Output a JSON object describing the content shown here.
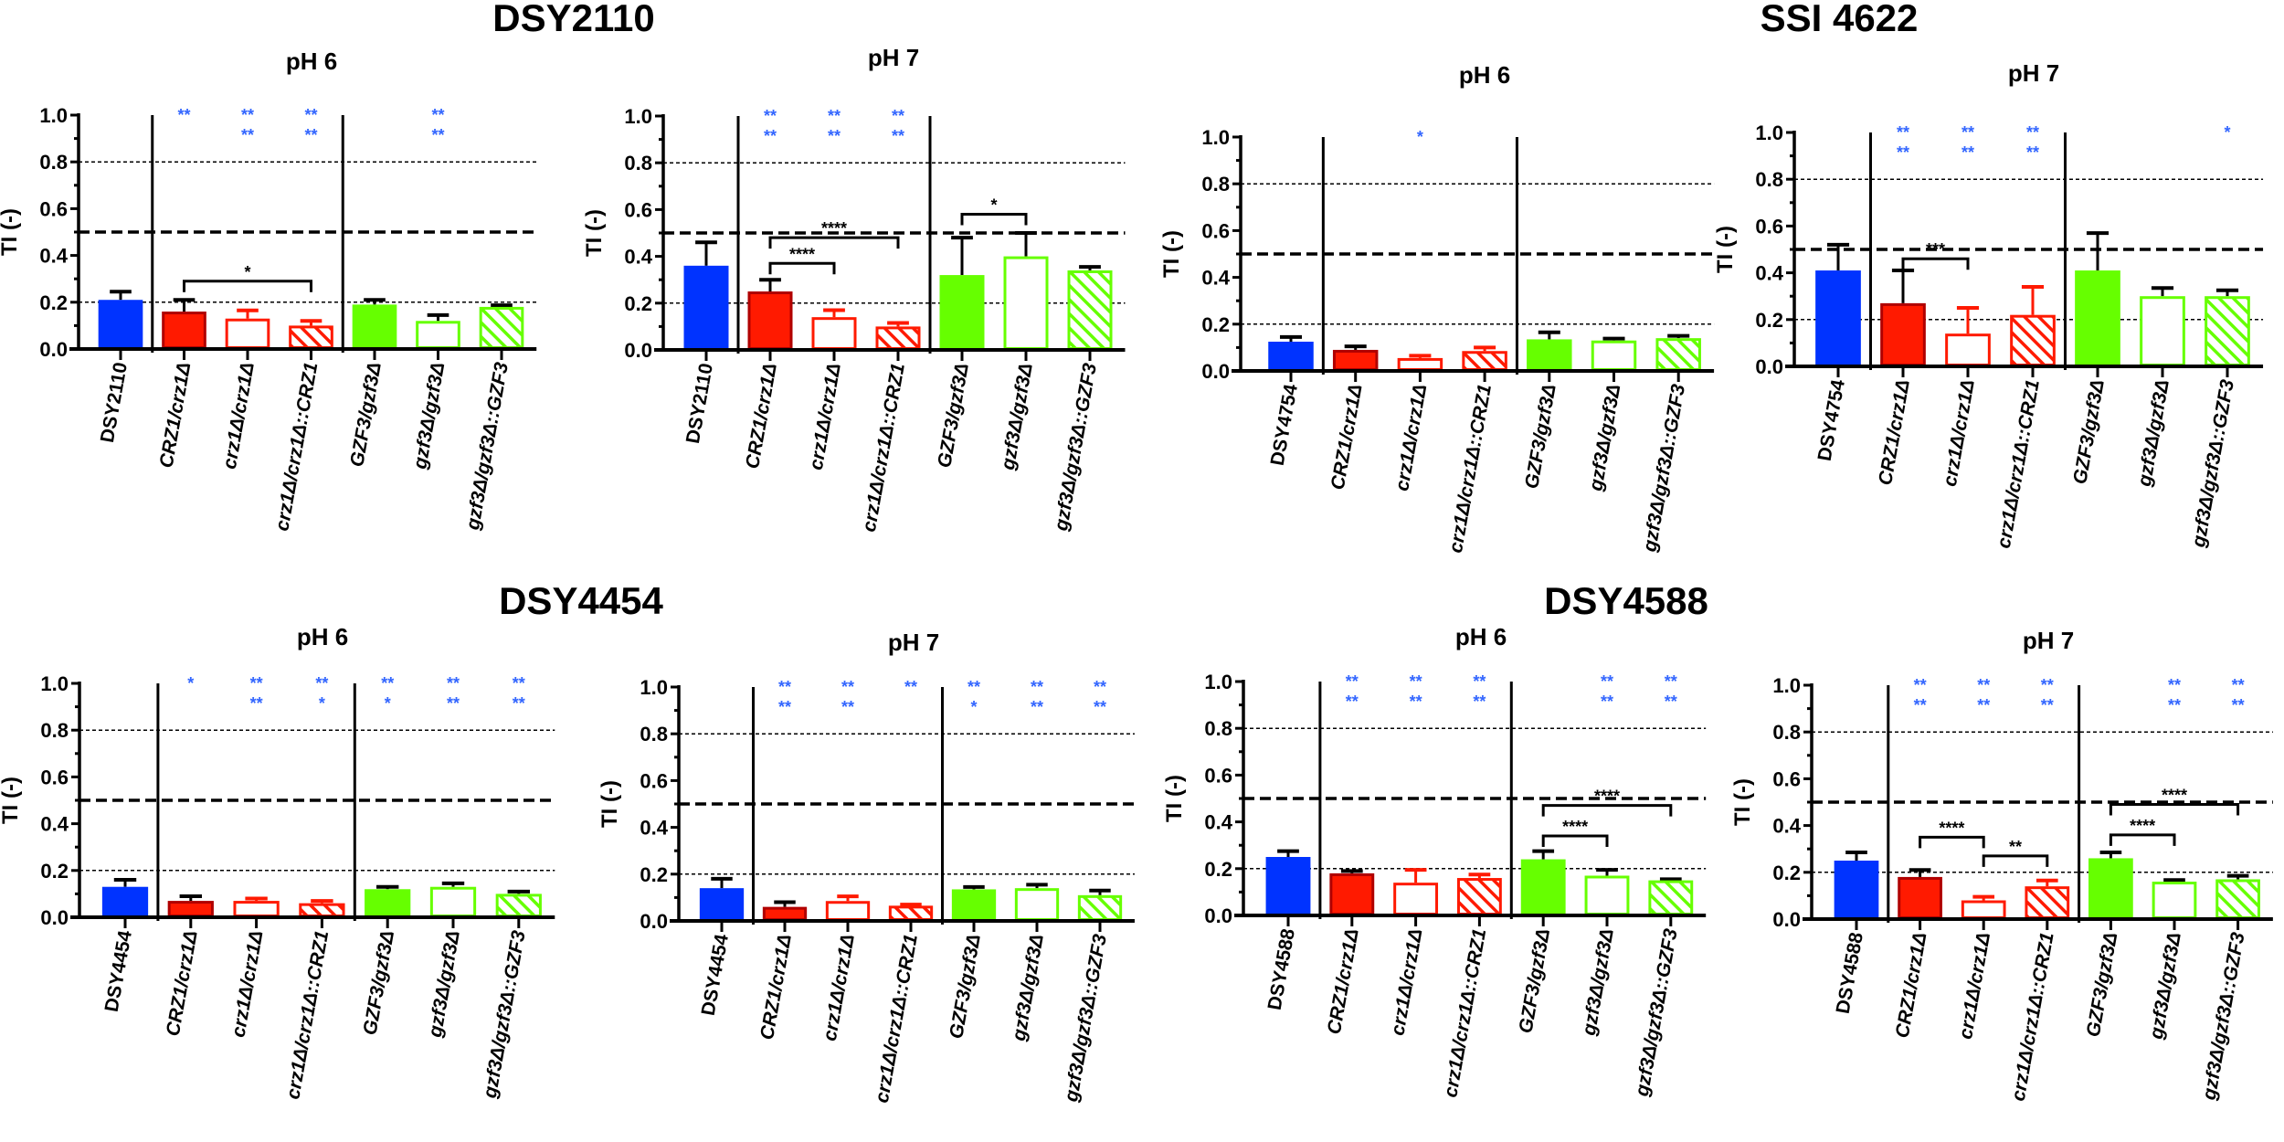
{
  "group_titles": [
    "DSY2110",
    "SSI 4622",
    "DSY4454",
    "DSY4588"
  ],
  "colors": {
    "wildtype": "#0033ff",
    "crz1": "#ff1a00",
    "crz1_border": "#b00000",
    "gzf3": "#66ff00",
    "stars": "#3366ff"
  },
  "chart_data": [
    {
      "type": "bar",
      "group": "DSY2110",
      "title": "pH 6",
      "ylabel": "TI (-)",
      "ylim": [
        0,
        1
      ],
      "yticks": [
        "0.0",
        "0.2",
        "0.4",
        "0.6",
        "0.8",
        "1.0"
      ],
      "reference_lines": [
        0.2,
        0.5,
        0.8
      ],
      "categories": [
        "DSY2110",
        "CRZ1/crz1Δ",
        "crz1Δ/crz1Δ",
        "crz1Δ/crz1Δ::CRZ1",
        "GZF3/gzf3Δ",
        "gzf3Δ/gzf3Δ",
        "gzf3Δ/gzf3Δ::GZF3"
      ],
      "values": [
        0.21,
        0.16,
        0.13,
        0.1,
        0.19,
        0.12,
        0.18
      ],
      "errors": [
        0.035,
        0.05,
        0.035,
        0.02,
        0.02,
        0.025,
        0.007
      ],
      "stars": [
        [],
        [
          "**"
        ],
        [
          "**",
          "**"
        ],
        [
          "**",
          "**"
        ],
        [],
        [
          "**",
          "**"
        ],
        []
      ],
      "brackets": [
        {
          "from": 1,
          "to": 3,
          "y": 0.29,
          "label": "*"
        }
      ]
    },
    {
      "type": "bar",
      "group": "DSY2110",
      "title": "pH 7",
      "ylabel": "TI (-)",
      "ylim": [
        0,
        1
      ],
      "yticks": [
        "0.0",
        "0.2",
        "0.4",
        "0.6",
        "0.8",
        "1.0"
      ],
      "reference_lines": [
        0.2,
        0.5,
        0.8
      ],
      "categories": [
        "DSY2110",
        "CRZ1/crz1Δ",
        "crz1Δ/crz1Δ",
        "crz1Δ/crz1Δ::CRZ1",
        "GZF3/gzf3Δ",
        "gzf3Δ/gzf3Δ",
        "gzf3Δ/gzf3Δ::GZF3"
      ],
      "values": [
        0.36,
        0.25,
        0.14,
        0.1,
        0.32,
        0.4,
        0.34
      ],
      "errors": [
        0.1,
        0.05,
        0.03,
        0.015,
        0.16,
        0.1,
        0.015
      ],
      "stars": [
        [],
        [
          "**",
          "**"
        ],
        [
          "**",
          "**"
        ],
        [
          "**",
          "**"
        ],
        [],
        [],
        []
      ],
      "brackets": [
        {
          "from": 1,
          "to": 2,
          "y": 0.37,
          "label": "****"
        },
        {
          "from": 1,
          "to": 3,
          "y": 0.48,
          "label": "****"
        },
        {
          "from": 4,
          "to": 5,
          "y": 0.58,
          "label": "*"
        }
      ]
    },
    {
      "type": "bar",
      "group": "SSI 4622",
      "title": "pH 6",
      "ylabel": "TI (-)",
      "ylim": [
        0,
        1
      ],
      "yticks": [
        "0.0",
        "0.2",
        "0.4",
        "0.6",
        "0.8",
        "1.0"
      ],
      "reference_lines": [
        0.2,
        0.5,
        0.8
      ],
      "categories": [
        "DSY4754",
        "CRZ1/crz1Δ",
        "crz1Δ/crz1Δ",
        "crz1Δ/crz1Δ::CRZ1",
        "GZF3/gzf3Δ",
        "gzf3Δ/gzf3Δ",
        "gzf3Δ/gzf3Δ::GZF3"
      ],
      "values": [
        0.125,
        0.09,
        0.055,
        0.085,
        0.135,
        0.13,
        0.14
      ],
      "errors": [
        0.02,
        0.015,
        0.01,
        0.015,
        0.03,
        0.008,
        0.01
      ],
      "stars": [
        [],
        [],
        [
          "*"
        ],
        [],
        [],
        [],
        []
      ],
      "brackets": []
    },
    {
      "type": "bar",
      "group": "SSI 4622",
      "title": "pH 7",
      "ylabel": "TI (-)",
      "ylim": [
        0,
        1
      ],
      "yticks": [
        "0.0",
        "0.2",
        "0.4",
        "0.6",
        "0.8",
        "1.0"
      ],
      "reference_lines": [
        0.2,
        0.5,
        0.8
      ],
      "categories": [
        "DSY4754",
        "CRZ1/crz1Δ",
        "crz1Δ/crz1Δ",
        "crz1Δ/crz1Δ::CRZ1",
        "GZF3/gzf3Δ",
        "gzf3Δ/gzf3Δ",
        "gzf3Δ/gzf3Δ::GZF3"
      ],
      "values": [
        0.41,
        0.27,
        0.14,
        0.22,
        0.41,
        0.3,
        0.3
      ],
      "errors": [
        0.11,
        0.14,
        0.11,
        0.12,
        0.16,
        0.035,
        0.025
      ],
      "stars": [
        [],
        [
          "**",
          "**"
        ],
        [
          "**",
          "**"
        ],
        [
          "**",
          "**"
        ],
        [],
        [],
        [
          "*"
        ]
      ],
      "brackets": [
        {
          "from": 1,
          "to": 2,
          "y": 0.46,
          "label": "***"
        }
      ]
    },
    {
      "type": "bar",
      "group": "DSY4454",
      "title": "pH 6",
      "ylabel": "TI (-)",
      "ylim": [
        0,
        1
      ],
      "yticks": [
        "0.0",
        "0.2",
        "0.4",
        "0.6",
        "0.8",
        "1.0"
      ],
      "reference_lines": [
        0.2,
        0.5,
        0.8
      ],
      "categories": [
        "DSY4454",
        "CRZ1/crz1Δ",
        "crz1Δ/crz1Δ",
        "crz1Δ/crz1Δ::CRZ1",
        "GZF3/gzf3Δ",
        "gzf3Δ/gzf3Δ",
        "gzf3Δ/gzf3Δ::GZF3"
      ],
      "values": [
        0.13,
        0.07,
        0.07,
        0.06,
        0.12,
        0.13,
        0.1
      ],
      "errors": [
        0.03,
        0.02,
        0.01,
        0.01,
        0.01,
        0.015,
        0.01
      ],
      "stars": [
        [],
        [
          "*"
        ],
        [
          "**",
          "**"
        ],
        [
          "**",
          "*"
        ],
        [
          "**",
          "*"
        ],
        [
          "**",
          "**"
        ],
        [
          "**",
          "**"
        ]
      ],
      "brackets": []
    },
    {
      "type": "bar",
      "group": "DSY4454",
      "title": "pH 7",
      "ylabel": "TI (-)",
      "ylim": [
        0,
        1
      ],
      "yticks": [
        "0.0",
        "0.2",
        "0.4",
        "0.6",
        "0.8",
        "1.0"
      ],
      "reference_lines": [
        0.2,
        0.5,
        0.8
      ],
      "categories": [
        "DSY4454",
        "CRZ1/crz1Δ",
        "crz1Δ/crz1Δ",
        "crz1Δ/crz1Δ::CRZ1",
        "GZF3/gzf3Δ",
        "gzf3Δ/gzf3Δ",
        "gzf3Δ/gzf3Δ::GZF3"
      ],
      "values": [
        0.14,
        0.06,
        0.085,
        0.065,
        0.135,
        0.14,
        0.11
      ],
      "errors": [
        0.04,
        0.02,
        0.02,
        0.005,
        0.01,
        0.015,
        0.02
      ],
      "stars": [
        [],
        [
          "**",
          "**"
        ],
        [
          "**",
          "**"
        ],
        [
          "**"
        ],
        [
          "**",
          "*"
        ],
        [
          "**",
          "**"
        ],
        [
          "**",
          "**"
        ]
      ],
      "brackets": []
    },
    {
      "type": "bar",
      "group": "DSY4588",
      "title": "pH 6",
      "ylabel": "TI (-)",
      "ylim": [
        0,
        1
      ],
      "yticks": [
        "0.0",
        "0.2",
        "0.4",
        "0.6",
        "0.8",
        "1.0"
      ],
      "reference_lines": [
        0.2,
        0.5,
        0.8
      ],
      "categories": [
        "DSY4588",
        "CRZ1/crz1Δ",
        "crz1Δ/crz1Δ",
        "crz1Δ/crz1Δ::CRZ1",
        "GZF3/gzf3Δ",
        "gzf3Δ/gzf3Δ",
        "gzf3Δ/gzf3Δ::GZF3"
      ],
      "values": [
        0.25,
        0.18,
        0.14,
        0.16,
        0.24,
        0.17,
        0.15
      ],
      "errors": [
        0.025,
        0.01,
        0.055,
        0.015,
        0.035,
        0.025,
        0.005
      ],
      "stars": [
        [],
        [
          "**",
          "**"
        ],
        [
          "**",
          "**"
        ],
        [
          "**",
          "**"
        ],
        [],
        [
          "**",
          "**"
        ],
        [
          "**",
          "**"
        ]
      ],
      "brackets": [
        {
          "from": 4,
          "to": 5,
          "y": 0.34,
          "label": "****"
        },
        {
          "from": 4,
          "to": 6,
          "y": 0.47,
          "label": "****"
        }
      ]
    },
    {
      "type": "bar",
      "group": "DSY4588",
      "title": "pH 7",
      "ylabel": "TI (-)",
      "ylim": [
        0,
        1
      ],
      "yticks": [
        "0.0",
        "0.2",
        "0.4",
        "0.6",
        "0.8",
        "1.0"
      ],
      "reference_lines": [
        0.2,
        0.5,
        0.8
      ],
      "categories": [
        "DSY4588",
        "CRZ1/crz1Δ",
        "crz1Δ/crz1Δ",
        "crz1Δ/crz1Δ::CRZ1",
        "GZF3/gzf3Δ",
        "gzf3Δ/gzf3Δ",
        "gzf3Δ/gzf3Δ::GZF3"
      ],
      "values": [
        0.25,
        0.18,
        0.08,
        0.14,
        0.26,
        0.16,
        0.17
      ],
      "errors": [
        0.035,
        0.03,
        0.015,
        0.025,
        0.025,
        0.007,
        0.015
      ],
      "stars": [
        [],
        [
          "**",
          "**"
        ],
        [
          "**",
          "**"
        ],
        [
          "**",
          "**"
        ],
        [],
        [
          "**",
          "**"
        ],
        [
          "**",
          "**"
        ]
      ],
      "brackets": [
        {
          "from": 1,
          "to": 2,
          "y": 0.35,
          "label": "****"
        },
        {
          "from": 2,
          "to": 3,
          "y": 0.27,
          "label": "**"
        },
        {
          "from": 4,
          "to": 5,
          "y": 0.36,
          "label": "****"
        },
        {
          "from": 4,
          "to": 6,
          "y": 0.49,
          "label": "****"
        }
      ]
    }
  ]
}
